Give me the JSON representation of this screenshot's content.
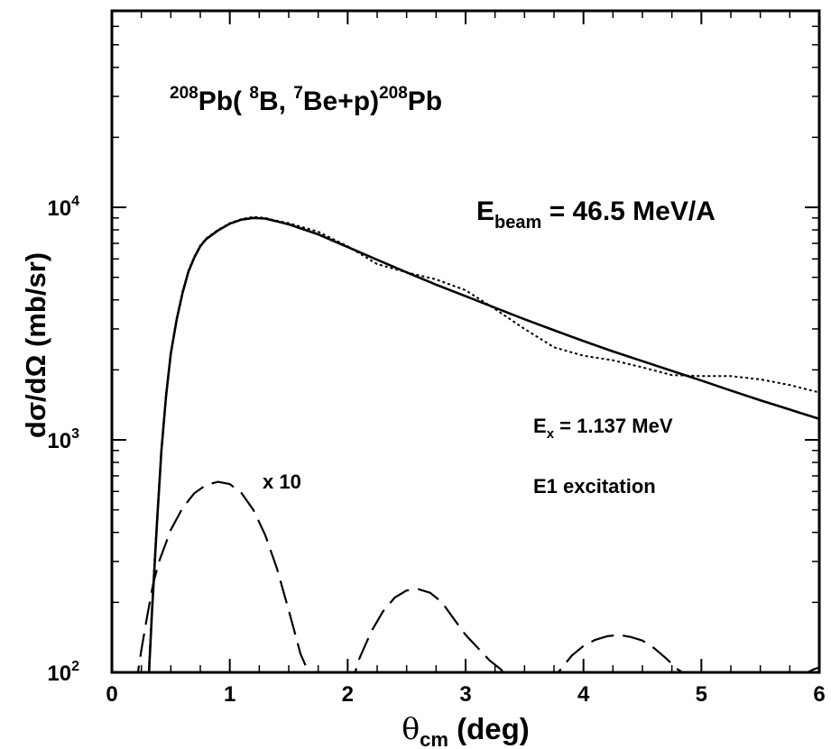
{
  "chart_data": {
    "type": "line",
    "xscale": "linear",
    "yscale": "log",
    "xlim": [
      0,
      6
    ],
    "ylim": [
      100,
      70000
    ],
    "xticks": [
      {
        "value": 0,
        "label": "0"
      },
      {
        "value": 1,
        "label": "1"
      },
      {
        "value": 2,
        "label": "2"
      },
      {
        "value": 3,
        "label": "3"
      },
      {
        "value": 4,
        "label": "4"
      },
      {
        "value": 5,
        "label": "5"
      },
      {
        "value": 6,
        "label": "6"
      }
    ],
    "yticks": [
      {
        "value": 100,
        "base": "10",
        "exp": "2"
      },
      {
        "value": 1000,
        "base": "10",
        "exp": "3"
      },
      {
        "value": 10000,
        "base": "10",
        "exp": "4"
      }
    ],
    "xlabel": {
      "main": "θ",
      "sub": "cm",
      "rest": " (deg)"
    },
    "ylabel": "dσ/dΩ (mb/sr)",
    "grid": false,
    "legend": "none",
    "series": [
      {
        "style": "solid",
        "x": [
          0.3,
          0.34,
          0.38,
          0.42,
          0.46,
          0.5,
          0.55,
          0.6,
          0.65,
          0.7,
          0.75,
          0.8,
          0.9,
          1.0,
          1.1,
          1.2,
          1.3,
          1.4,
          1.5,
          1.75,
          2.0,
          2.25,
          2.5,
          2.75,
          3.0,
          3.25,
          3.5,
          3.75,
          4.0,
          4.25,
          4.5,
          4.75,
          5.0,
          5.25,
          5.5,
          5.75,
          6.0
        ],
        "y": [
          70,
          180,
          420,
          900,
          1550,
          2350,
          3300,
          4300,
          5300,
          6100,
          6800,
          7300,
          7950,
          8500,
          8850,
          9000,
          8950,
          8700,
          8450,
          7650,
          6750,
          5950,
          5250,
          4650,
          4150,
          3700,
          3300,
          2960,
          2660,
          2400,
          2180,
          1980,
          1800,
          1630,
          1480,
          1350,
          1230
        ]
      },
      {
        "style": "dotted",
        "x": [
          0.3,
          0.34,
          0.38,
          0.42,
          0.46,
          0.5,
          0.55,
          0.6,
          0.65,
          0.7,
          0.75,
          0.8,
          0.9,
          1.0,
          1.1,
          1.2,
          1.3,
          1.4,
          1.5,
          1.75,
          2.0,
          2.25,
          2.5,
          2.75,
          3.0,
          3.25,
          3.5,
          3.75,
          4.0,
          4.25,
          4.5,
          4.75,
          5.0,
          5.25,
          5.5,
          5.75,
          6.0
        ],
        "y": [
          75,
          190,
          440,
          920,
          1580,
          2380,
          3350,
          4350,
          5350,
          6150,
          6850,
          7350,
          8000,
          8550,
          8900,
          9100,
          9000,
          8750,
          8550,
          7850,
          6800,
          5700,
          5250,
          4900,
          4400,
          3650,
          3000,
          2500,
          2300,
          2200,
          2050,
          1900,
          1880,
          1880,
          1820,
          1720,
          1600
        ]
      },
      {
        "style": "dashed",
        "x": [
          0.2,
          0.25,
          0.3,
          0.35,
          0.4,
          0.5,
          0.6,
          0.7,
          0.8,
          0.9,
          1.0,
          1.1,
          1.2,
          1.3,
          1.4,
          1.5,
          1.6,
          1.65,
          1.7,
          2.05,
          2.1,
          2.2,
          2.3,
          2.4,
          2.5,
          2.6,
          2.7,
          2.8,
          2.9,
          3.0,
          3.1,
          3.2,
          3.3,
          3.35,
          3.75,
          3.8,
          3.9,
          4.0,
          4.1,
          4.2,
          4.3,
          4.4,
          4.5,
          4.6,
          4.7,
          4.8,
          4.9,
          5.85,
          5.9,
          5.95,
          6.0
        ],
        "y": [
          85,
          125,
          175,
          240,
          300,
          410,
          510,
          590,
          640,
          660,
          645,
          590,
          500,
          390,
          280,
          185,
          120,
          105,
          95,
          95,
          115,
          150,
          183,
          210,
          225,
          228,
          220,
          200,
          170,
          145,
          128,
          113,
          103,
          95,
          95,
          102,
          118,
          130,
          138,
          143,
          145,
          142,
          137,
          127,
          115,
          103,
          96,
          96,
          100,
          103,
          105
        ]
      }
    ],
    "annotations": {
      "reaction": {
        "p1": "208",
        "p2": "Pb( ",
        "p3": "8",
        "p4": "B, ",
        "p5": "7",
        "p6": "Be+p)",
        "p7": "208",
        "p8": "Pb"
      },
      "ebeam": {
        "main": "E",
        "sub": "beam",
        "rest": " = 46.5 MeV/A"
      },
      "ex": {
        "main": "E",
        "sub": "x",
        "rest": " = 1.137 MeV"
      },
      "e1": "E1 excitation",
      "x10": "x 10"
    }
  }
}
